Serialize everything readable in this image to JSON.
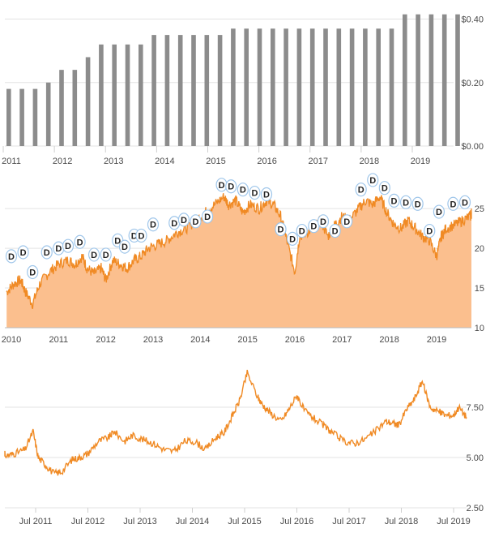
{
  "chart_data": [
    {
      "type": "bar",
      "title": "",
      "ylim": [
        0,
        0.45
      ],
      "y_ticks": [
        "$0.00",
        "$0.20",
        "$0.40"
      ],
      "y_tick_values": [
        0,
        0.2,
        0.4
      ],
      "x_ticks": [
        "2011",
        "2012",
        "2013",
        "2014",
        "2015",
        "2016",
        "2017",
        "2018",
        "2019"
      ],
      "bar_color": "#8c8c8c",
      "values": [
        0.18,
        0.18,
        0.18,
        0.2,
        0.24,
        0.24,
        0.28,
        0.32,
        0.32,
        0.32,
        0.32,
        0.35,
        0.35,
        0.35,
        0.35,
        0.35,
        0.35,
        0.37,
        0.37,
        0.37,
        0.37,
        0.37,
        0.37,
        0.37,
        0.37,
        0.37,
        0.37,
        0.37,
        0.37,
        0.37,
        0.415,
        0.415,
        0.415,
        0.415,
        0.415
      ]
    },
    {
      "type": "area",
      "title": "",
      "ylim": [
        10,
        29
      ],
      "y_ticks": [
        "10",
        "15",
        "20",
        "25"
      ],
      "y_tick_values": [
        10,
        15,
        20,
        25
      ],
      "x_ticks": [
        "2010",
        "2011",
        "2012",
        "2013",
        "2014",
        "2015",
        "2016",
        "2017",
        "2018",
        "2019"
      ],
      "line_color": "#f08a24",
      "fill_color": "#fbbf8e",
      "dividend_marker_label": "D",
      "x": [
        2009.9,
        2010.05,
        2010.2,
        2010.3,
        2010.45,
        2010.6,
        2010.8,
        2011.0,
        2011.2,
        2011.35,
        2011.5,
        2011.6,
        2011.75,
        2011.9,
        2012.0,
        2012.15,
        2012.3,
        2012.45,
        2012.6,
        2012.75,
        2012.9,
        2013.1,
        2013.3,
        2013.5,
        2013.7,
        2013.9,
        2014.1,
        2014.3,
        2014.5,
        2014.6,
        2014.75,
        2014.9,
        2015.05,
        2015.25,
        2015.4,
        2015.55,
        2015.7,
        2015.85,
        2016.0,
        2016.1,
        2016.25,
        2016.4,
        2016.55,
        2016.7,
        2016.85,
        2017.0,
        2017.15,
        2017.35,
        2017.5,
        2017.65,
        2017.8,
        2017.95,
        2018.1,
        2018.25,
        2018.4,
        2018.55,
        2018.7,
        2018.85,
        2019.0,
        2019.1,
        2019.2,
        2019.4,
        2019.55,
        2019.7,
        2019.85,
        2019.95
      ],
      "y": [
        14.5,
        15.5,
        16,
        14.5,
        13,
        15.5,
        17,
        18,
        18.5,
        18,
        19,
        17.5,
        16.8,
        17.5,
        16,
        18.5,
        18,
        17.5,
        18.5,
        19,
        20,
        20.5,
        21,
        22,
        22.5,
        23.5,
        24.5,
        25.5,
        26.5,
        25.5,
        26,
        24.5,
        25.5,
        25,
        26,
        25.5,
        24,
        20.5,
        17,
        21.5,
        22,
        22.5,
        23.5,
        21.5,
        23,
        24,
        23.5,
        25,
        26,
        25.5,
        26.5,
        24.5,
        23,
        22.5,
        23.5,
        22.5,
        21.5,
        21,
        19,
        21.5,
        22.5,
        23,
        23.5,
        24,
        24.5,
        24.3
      ],
      "dividend_markers": [
        {
          "x": 2010.0,
          "y": 19
        },
        {
          "x": 2010.25,
          "y": 19.5
        },
        {
          "x": 2010.45,
          "y": 17
        },
        {
          "x": 2010.75,
          "y": 19.5
        },
        {
          "x": 2011.0,
          "y": 20
        },
        {
          "x": 2011.2,
          "y": 20.3
        },
        {
          "x": 2011.45,
          "y": 20.8
        },
        {
          "x": 2011.75,
          "y": 19.2
        },
        {
          "x": 2012.0,
          "y": 19.2
        },
        {
          "x": 2012.25,
          "y": 21
        },
        {
          "x": 2012.4,
          "y": 20.2
        },
        {
          "x": 2012.6,
          "y": 21.6
        },
        {
          "x": 2012.75,
          "y": 21.6
        },
        {
          "x": 2013.0,
          "y": 23
        },
        {
          "x": 2013.45,
          "y": 23.2
        },
        {
          "x": 2013.65,
          "y": 23.6
        },
        {
          "x": 2013.9,
          "y": 23.4
        },
        {
          "x": 2014.15,
          "y": 24
        },
        {
          "x": 2014.45,
          "y": 28
        },
        {
          "x": 2014.65,
          "y": 27.8
        },
        {
          "x": 2014.9,
          "y": 27.4
        },
        {
          "x": 2015.15,
          "y": 27
        },
        {
          "x": 2015.4,
          "y": 26.8
        },
        {
          "x": 2015.7,
          "y": 22.4
        },
        {
          "x": 2015.95,
          "y": 21.2
        },
        {
          "x": 2016.15,
          "y": 22.2
        },
        {
          "x": 2016.4,
          "y": 22.8
        },
        {
          "x": 2016.6,
          "y": 23.4
        },
        {
          "x": 2016.85,
          "y": 22.2
        },
        {
          "x": 2017.1,
          "y": 23.4
        },
        {
          "x": 2017.4,
          "y": 27.4
        },
        {
          "x": 2017.65,
          "y": 28.6
        },
        {
          "x": 2017.9,
          "y": 27.6
        },
        {
          "x": 2018.1,
          "y": 26
        },
        {
          "x": 2018.35,
          "y": 25.8
        },
        {
          "x": 2018.6,
          "y": 25.6
        },
        {
          "x": 2018.85,
          "y": 22.2
        },
        {
          "x": 2019.05,
          "y": 24.6
        },
        {
          "x": 2019.35,
          "y": 25.6
        },
        {
          "x": 2019.6,
          "y": 25.8
        }
      ]
    },
    {
      "type": "line",
      "title": "",
      "ylim": [
        2.5,
        10
      ],
      "y_ticks": [
        "2.50",
        "5.00",
        "7.50"
      ],
      "y_tick_values": [
        2.5,
        5.0,
        7.5
      ],
      "x_ticks": [
        "Jul 2011",
        "Jul 2012",
        "Jul 2013",
        "Jul 2014",
        "Jul 2015",
        "Jul 2016",
        "Jul 2017",
        "Jul 2018",
        "Jul 2019"
      ],
      "line_color": "#f08a24",
      "x": [
        2010.75,
        2010.95,
        2011.1,
        2011.3,
        2011.45,
        2011.55,
        2011.7,
        2011.85,
        2012.0,
        2012.2,
        2012.35,
        2012.5,
        2012.7,
        2012.9,
        2013.0,
        2013.2,
        2013.35,
        2013.55,
        2013.75,
        2013.95,
        2014.15,
        2014.35,
        2014.55,
        2014.75,
        2014.95,
        2015.1,
        2015.25,
        2015.4,
        2015.55,
        2015.75,
        2015.85,
        2016.0,
        2016.2,
        2016.35,
        2016.5,
        2016.65,
        2016.8,
        2017.0,
        2017.2,
        2017.4,
        2017.6,
        2017.8,
        2018.0,
        2018.2,
        2018.35,
        2018.45,
        2018.6,
        2018.75,
        2018.9,
        2019.05,
        2019.2,
        2019.35,
        2019.5,
        2019.6,
        2019.75
      ],
      "y": [
        5.3,
        5.1,
        5.2,
        5.4,
        6.3,
        5.0,
        4.6,
        4.2,
        4.3,
        4.9,
        5.0,
        5.2,
        5.8,
        6.0,
        6.3,
        5.8,
        6.1,
        5.9,
        5.7,
        5.4,
        5.3,
        5.8,
        5.8,
        5.4,
        6.0,
        6.2,
        7.0,
        7.8,
        9.2,
        8.0,
        7.6,
        7.2,
        6.8,
        7.4,
        8.1,
        7.3,
        7.0,
        6.6,
        6.2,
        5.8,
        5.7,
        5.9,
        6.3,
        6.8,
        6.7,
        6.6,
        7.4,
        7.9,
        8.8,
        7.5,
        7.3,
        7.1,
        7.1,
        7.5,
        7.0
      ]
    }
  ]
}
